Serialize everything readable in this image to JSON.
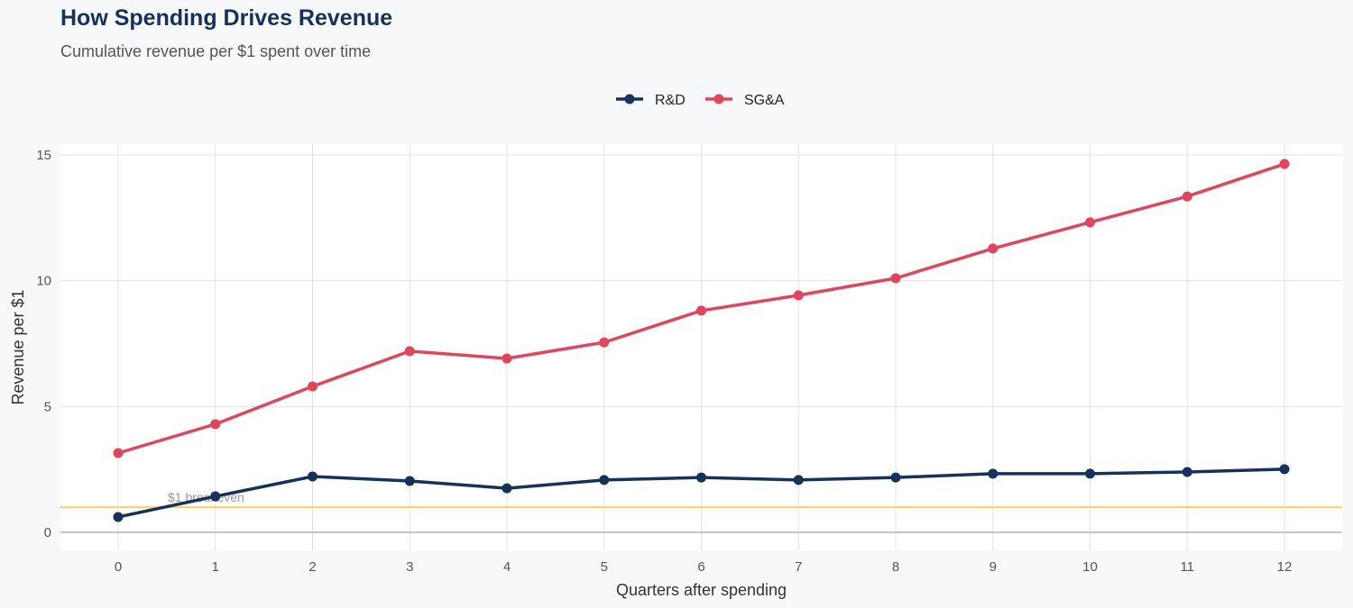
{
  "chart_data": {
    "type": "line",
    "title": "How Spending Drives Revenue",
    "subtitle": "Cumulative revenue per $1 spent over time",
    "xlabel": "Quarters after spending",
    "ylabel": "Revenue per $1",
    "x": [
      0,
      1,
      2,
      3,
      4,
      5,
      6,
      7,
      8,
      9,
      10,
      11,
      12
    ],
    "xlim": [
      -0.6,
      12.6
    ],
    "ylim": [
      -0.7,
      15.4
    ],
    "yticks": [
      0,
      5,
      10,
      15
    ],
    "grid": true,
    "legend_position": "top",
    "series": [
      {
        "name": "R&D",
        "color": "#14325c",
        "values": [
          0.61,
          1.43,
          2.22,
          2.04,
          1.75,
          2.08,
          2.18,
          2.08,
          2.18,
          2.33,
          2.33,
          2.4,
          2.51
        ]
      },
      {
        "name": "SG&A",
        "color": "#e5435b",
        "values": [
          3.15,
          4.3,
          5.8,
          7.2,
          6.91,
          7.55,
          8.81,
          9.42,
          10.1,
          11.28,
          12.32,
          13.35,
          14.64
        ]
      }
    ],
    "reference_line": {
      "y": 1,
      "label": "$1 breakeven",
      "color": "#f9d25e"
    }
  }
}
